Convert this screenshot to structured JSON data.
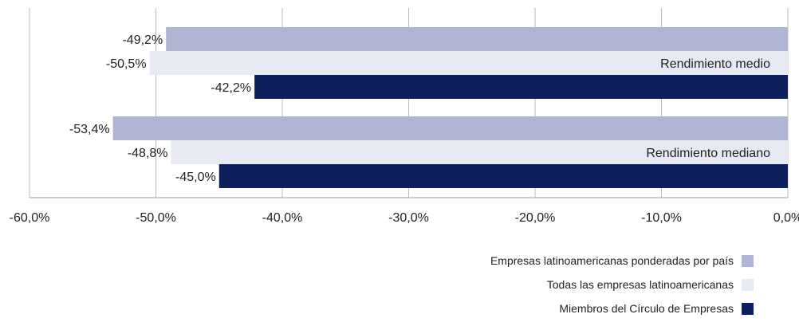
{
  "chart_data": {
    "type": "bar",
    "orientation": "horizontal",
    "x": {
      "lim": [
        -60,
        0
      ],
      "ticks": [
        -60,
        -50,
        -40,
        -30,
        -20,
        -10,
        0
      ],
      "tick_labels": [
        "-60,0%",
        "-50,0%",
        "-40,0%",
        "-30,0%",
        "-20,0%",
        "-10,0%",
        "0,0%"
      ]
    },
    "grid": true,
    "groups": [
      {
        "label": "Rendimiento medio",
        "values": [
          -49.2,
          -50.5,
          -42.2
        ],
        "value_labels": [
          "-49,2%",
          "-50,5%",
          "-42,2%"
        ]
      },
      {
        "label": "Rendimiento mediano",
        "values": [
          -53.4,
          -48.8,
          -45.0
        ],
        "value_labels": [
          "-53,4%",
          "-48,8%",
          "-45,0%"
        ]
      }
    ],
    "series": [
      {
        "name": "Empresas latinoamericanas ponderadas por país",
        "color": "#b0b5d3"
      },
      {
        "name": "Todas las empresas latinoamericanas",
        "color": "#e7e9f3"
      },
      {
        "name": "Miembros del Círculo de Empresas",
        "color": "#0d1f5c"
      }
    ],
    "legend": "bottom-right"
  }
}
